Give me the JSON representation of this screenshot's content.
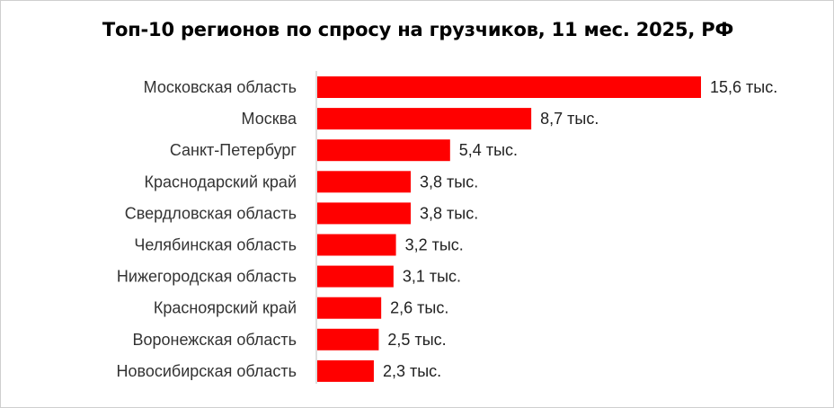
{
  "chart_data": {
    "type": "bar",
    "orientation": "horizontal",
    "title": "Топ-10 регионов по спросу на грузчиков, 11 мес. 2025, РФ",
    "categories": [
      "Московская область",
      "Москва",
      "Санкт-Петербург",
      "Краснодарский край",
      "Свердловская область",
      "Челябинская область",
      "Нижегородская область",
      "Красноярский край",
      "Воронежская область",
      "Новосибирская область"
    ],
    "values": [
      15.6,
      8.7,
      5.4,
      3.8,
      3.8,
      3.2,
      3.1,
      2.6,
      2.5,
      2.3
    ],
    "value_labels": [
      "15,6 тыс.",
      "8,7 тыс.",
      "5,4 тыс.",
      "3,8 тыс.",
      "3,8 тыс.",
      "3,2 тыс.",
      "3,1 тыс.",
      "2,6 тыс.",
      "2,5 тыс.",
      "2,3 тыс."
    ],
    "xlabel": "",
    "ylabel": "",
    "grid": false,
    "legend": "none",
    "bar_color": "#ff0000",
    "axis_color": "#bdbdbd"
  }
}
